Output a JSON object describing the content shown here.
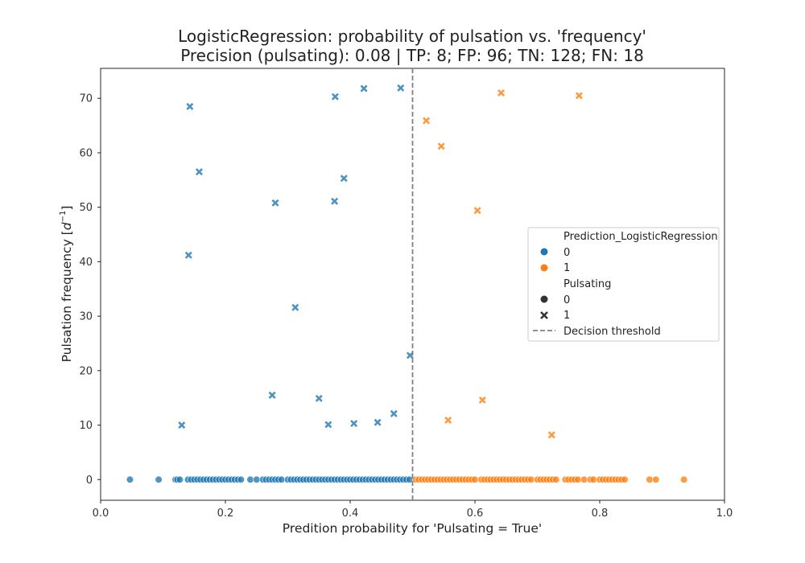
{
  "chart_data": {
    "type": "scatter",
    "title": "LogisticRegression: probability of pulsation vs. 'frequency'",
    "subtitle": "Precision (pulsating): 0.08 | TP: 8; FP: 96; TN: 128; FN: 18",
    "xlabel": "Predition probability for 'Pulsating = True'",
    "ylabel_main": "Pulsation frequency [",
    "ylabel_math": "d",
    "ylabel_sup": "−1",
    "ylabel_end": "]",
    "xlim": [
      0.0,
      1.0
    ],
    "ylim": [
      -3.8,
      75.5
    ],
    "xticks": [
      0.0,
      0.2,
      0.4,
      0.6,
      0.8,
      1.0
    ],
    "xtick_labels": [
      "0.0",
      "0.2",
      "0.4",
      "0.6",
      "0.8",
      "1.0"
    ],
    "yticks": [
      0,
      10,
      20,
      30,
      40,
      50,
      60,
      70
    ],
    "ytick_labels": [
      "0",
      "10",
      "20",
      "30",
      "40",
      "50",
      "60",
      "70"
    ],
    "grid": false,
    "threshold": 0.5,
    "colors": {
      "prediction_0": "#1f77b4",
      "prediction_1": "#ff7f0e",
      "threshold": "#808080"
    },
    "legend": {
      "placement": "center-right",
      "hue_title": "Prediction_LogisticRegression",
      "hue_entries": [
        "0",
        "1"
      ],
      "style_title": "Pulsating",
      "style_entries": [
        "0",
        "1"
      ],
      "threshold_label": "Decision threshold"
    },
    "series": [
      {
        "prediction": 0,
        "pulsating": 0,
        "marker": "circle",
        "x": [
          0.047,
          0.093,
          0.12,
          0.123,
          0.127,
          0.14,
          0.145,
          0.15,
          0.155,
          0.16,
          0.165,
          0.17,
          0.175,
          0.18,
          0.185,
          0.19,
          0.195,
          0.2,
          0.205,
          0.21,
          0.215,
          0.22,
          0.225,
          0.24,
          0.25,
          0.26,
          0.265,
          0.27,
          0.275,
          0.28,
          0.285,
          0.29,
          0.3,
          0.305,
          0.31,
          0.315,
          0.32,
          0.325,
          0.33,
          0.335,
          0.34,
          0.345,
          0.35,
          0.355,
          0.36,
          0.365,
          0.37,
          0.375,
          0.38,
          0.385,
          0.39,
          0.395,
          0.4,
          0.405,
          0.41,
          0.415,
          0.42,
          0.425,
          0.43,
          0.435,
          0.44,
          0.445,
          0.45,
          0.455,
          0.46,
          0.465,
          0.47,
          0.475,
          0.48,
          0.485,
          0.49,
          0.495
        ],
        "y": [
          0,
          0,
          0,
          0,
          0,
          0,
          0,
          0,
          0,
          0,
          0,
          0,
          0,
          0,
          0,
          0,
          0,
          0,
          0,
          0,
          0,
          0,
          0,
          0,
          0,
          0,
          0,
          0,
          0,
          0,
          0,
          0,
          0,
          0,
          0,
          0,
          0,
          0,
          0,
          0,
          0,
          0,
          0,
          0,
          0,
          0,
          0,
          0,
          0,
          0,
          0,
          0,
          0,
          0,
          0,
          0,
          0,
          0,
          0,
          0,
          0,
          0,
          0,
          0,
          0,
          0,
          0,
          0,
          0,
          0,
          0,
          0
        ]
      },
      {
        "prediction": 0,
        "pulsating": 1,
        "marker": "x",
        "x": [
          0.143,
          0.158,
          0.141,
          0.13,
          0.28,
          0.312,
          0.275,
          0.35,
          0.365,
          0.376,
          0.375,
          0.39,
          0.422,
          0.406,
          0.444,
          0.47,
          0.481,
          0.496
        ],
        "y": [
          68.5,
          56.5,
          41.2,
          10.0,
          50.8,
          31.6,
          15.5,
          14.9,
          10.1,
          70.3,
          51.1,
          55.3,
          71.8,
          10.3,
          10.5,
          12.1,
          71.9,
          22.8
        ]
      },
      {
        "prediction": 1,
        "pulsating": 0,
        "marker": "circle",
        "x": [
          0.505,
          0.51,
          0.515,
          0.52,
          0.525,
          0.53,
          0.535,
          0.54,
          0.545,
          0.55,
          0.555,
          0.56,
          0.565,
          0.57,
          0.575,
          0.58,
          0.585,
          0.59,
          0.595,
          0.6,
          0.61,
          0.615,
          0.62,
          0.625,
          0.63,
          0.635,
          0.64,
          0.645,
          0.65,
          0.655,
          0.66,
          0.665,
          0.67,
          0.675,
          0.68,
          0.685,
          0.69,
          0.7,
          0.705,
          0.71,
          0.715,
          0.72,
          0.725,
          0.73,
          0.745,
          0.75,
          0.755,
          0.76,
          0.765,
          0.775,
          0.785,
          0.79,
          0.8,
          0.805,
          0.81,
          0.815,
          0.82,
          0.825,
          0.83,
          0.835,
          0.84,
          0.88,
          0.89,
          0.935
        ],
        "y": [
          0,
          0,
          0,
          0,
          0,
          0,
          0,
          0,
          0,
          0,
          0,
          0,
          0,
          0,
          0,
          0,
          0,
          0,
          0,
          0,
          0,
          0,
          0,
          0,
          0,
          0,
          0,
          0,
          0,
          0,
          0,
          0,
          0,
          0,
          0,
          0,
          0,
          0,
          0,
          0,
          0,
          0,
          0,
          0,
          0,
          0,
          0,
          0,
          0,
          0,
          0,
          0,
          0,
          0,
          0,
          0,
          0,
          0,
          0,
          0,
          0,
          0,
          0,
          0
        ]
      },
      {
        "prediction": 1,
        "pulsating": 1,
        "marker": "x",
        "x": [
          0.522,
          0.546,
          0.642,
          0.767,
          0.604,
          0.612,
          0.557,
          0.723
        ],
        "y": [
          65.9,
          61.2,
          71.0,
          70.5,
          49.4,
          14.6,
          10.9,
          8.2
        ]
      }
    ]
  }
}
